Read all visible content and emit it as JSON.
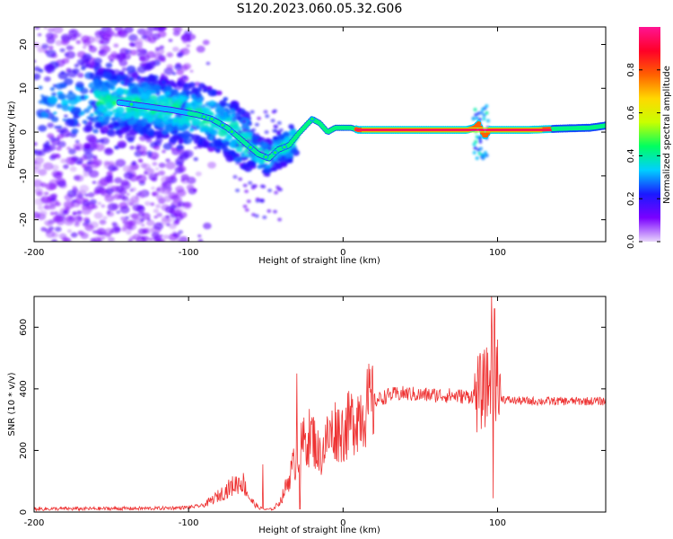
{
  "title": "S120.2023.060.05.32.G06",
  "chart_data": [
    {
      "type": "heatmap",
      "xlabel": "Height of straight line (km)",
      "ylabel": "Frequency (Hz)",
      "xlim": [
        -200,
        170
      ],
      "ylim": [
        -25,
        24
      ],
      "xticks": [
        -200,
        -100,
        0,
        100
      ],
      "yticks": [
        -20,
        -10,
        0,
        10,
        20
      ],
      "colorbar": {
        "label": "Normalized spectral amplitude",
        "range": [
          0,
          1
        ],
        "ticks": [
          "0.0",
          "0.2",
          "0.4",
          "0.6",
          "0.8"
        ],
        "colormap": [
          "#e8d6fb",
          "#7a00ff",
          "#1a1aff",
          "#00d0ff",
          "#00ff60",
          "#c8ff00",
          "#ffd800",
          "#ff6000",
          "#ff0028",
          "#ff1493"
        ]
      },
      "ridge": {
        "x": [
          -150,
          -130,
          -110,
          -95,
          -85,
          -75,
          -65,
          -55,
          -48,
          -42,
          -35,
          -28,
          -20,
          -15,
          -10,
          -5,
          0,
          5,
          10,
          20,
          40,
          60,
          80,
          85,
          88,
          90,
          92,
          95,
          100,
          120,
          140,
          160,
          170
        ],
        "y": [
          7,
          6,
          5,
          4,
          3,
          1,
          -2,
          -5,
          -6,
          -4,
          -3,
          0,
          3,
          2,
          0,
          1,
          1,
          1,
          0.5,
          0.5,
          0.5,
          0.5,
          0.5,
          1,
          2,
          0,
          -1,
          0.5,
          0.5,
          0.5,
          0.8,
          1,
          1.5
        ]
      },
      "strong_band": {
        "x_start": 8,
        "x_end": 135,
        "frequency": 0.5,
        "amplitude": 0.95
      }
    },
    {
      "type": "line",
      "xlabel": "Height of straight line (km)",
      "ylabel": "SNR (10 * v/v)",
      "xlim": [
        -200,
        170
      ],
      "ylim": [
        0,
        700
      ],
      "xticks": [
        -200,
        -100,
        0,
        100
      ],
      "yticks": [
        0,
        200,
        400,
        600
      ],
      "color": "#ee3333",
      "envelope": {
        "x": [
          -200,
          -120,
          -100,
          -90,
          -80,
          -70,
          -65,
          -60,
          -55,
          -50,
          -45,
          -40,
          -35,
          -30,
          -25,
          -20,
          -15,
          -10,
          -5,
          0,
          5,
          10,
          20,
          30,
          40,
          50,
          60,
          70,
          80,
          85,
          90,
          95,
          97,
          100,
          105,
          110,
          120,
          140,
          170
        ],
        "y": [
          10,
          12,
          15,
          22,
          55,
          90,
          100,
          40,
          15,
          8,
          10,
          40,
          110,
          180,
          230,
          250,
          180,
          240,
          270,
          260,
          290,
          320,
          360,
          380,
          385,
          380,
          380,
          378,
          375,
          380,
          390,
          420,
          500,
          380,
          365,
          362,
          360,
          360,
          360
        ]
      },
      "spikes": [
        {
          "x": -52,
          "y": 155
        },
        {
          "x": -30,
          "y": 450
        },
        {
          "x": -28,
          "y": 10
        },
        {
          "x": 95,
          "y": 460
        },
        {
          "x": 96,
          "y": 700
        },
        {
          "x": 97,
          "y": 45
        },
        {
          "x": 98,
          "y": 660
        },
        {
          "x": 100,
          "y": 560
        }
      ]
    }
  ]
}
